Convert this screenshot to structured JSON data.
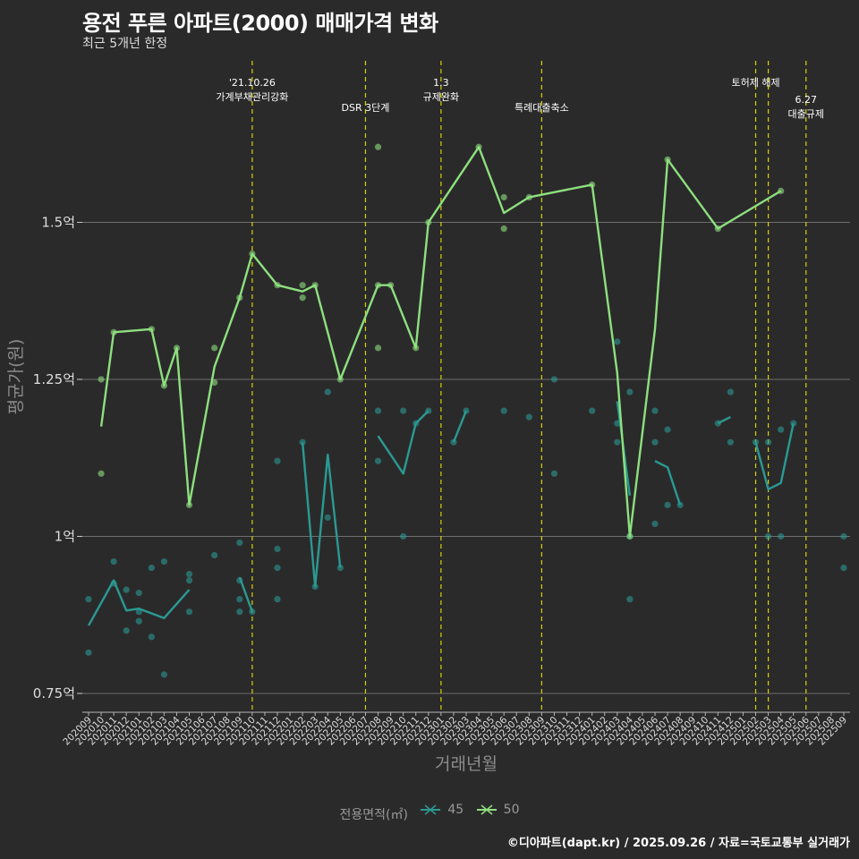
{
  "header": {
    "title": "용전 푸른 아파트(2000) 매매가격 변화",
    "subtitle": "최근 5개년 한정"
  },
  "caption": "©디아파트(dapt.kr) / 2025.09.26 / 자료=국토교통부 실거래가",
  "legend": {
    "title": "전용면적(㎡)",
    "entries": [
      {
        "label": "45",
        "color": "#2a9a92"
      },
      {
        "label": "50",
        "color": "#8de07e"
      }
    ]
  },
  "chart_data": {
    "type": "line",
    "xlabel": "거래년월",
    "ylabel": "평균가(원)",
    "ylim": [
      0.72,
      1.76
    ],
    "yticks": [
      {
        "value": 0.75,
        "label": "0.75억"
      },
      {
        "value": 1.0,
        "label": "1억"
      },
      {
        "value": 1.25,
        "label": "1.25억"
      },
      {
        "value": 1.5,
        "label": "1.5억"
      }
    ],
    "categories": [
      "202009",
      "202010",
      "202011",
      "202012",
      "202101",
      "202102",
      "202103",
      "202104",
      "202105",
      "202106",
      "202107",
      "202108",
      "202109",
      "202110",
      "202111",
      "202112",
      "202201",
      "202202",
      "202203",
      "202204",
      "202205",
      "202206",
      "202207",
      "202208",
      "202209",
      "202210",
      "202211",
      "202212",
      "202301",
      "202302",
      "202303",
      "202304",
      "202305",
      "202306",
      "202307",
      "202308",
      "202309",
      "202310",
      "202311",
      "202312",
      "202401",
      "202402",
      "202403",
      "202404",
      "202405",
      "202406",
      "202407",
      "202408",
      "202409",
      "202410",
      "202411",
      "202412",
      "202501",
      "202502",
      "202503",
      "202504",
      "202505",
      "202506",
      "202507",
      "202508",
      "202509"
    ],
    "xtick_labels": [
      "202009",
      "202010",
      "202011",
      "202012",
      "202101",
      "202102",
      "202103",
      "202104",
      "202105",
      "202106",
      "202107",
      "202108",
      "202109",
      "202110",
      "202111",
      "202112",
      "202201",
      "202202",
      "202203",
      "202204",
      "202205",
      "202206",
      "202207",
      "202208",
      "202209",
      "202210",
      "202211",
      "202212",
      "202301",
      "202302",
      "202303",
      "202304",
      "202305",
      "202306",
      "202307",
      "202308",
      "202309",
      "202310",
      "202311",
      "202312",
      "202401",
      "202402",
      "202403",
      "202404",
      "202405",
      "202406",
      "202407",
      "202408",
      "202409",
      "202410",
      "202411",
      "202412",
      "202501",
      "202502",
      "202503",
      "202504",
      "202505",
      "202506",
      "202507",
      "202508",
      "202509"
    ],
    "events": [
      {
        "index": 13,
        "lines": [
          "'21.10.26",
          "가계부채관리강화"
        ],
        "level": 0
      },
      {
        "index": 22,
        "lines": [
          "DSR 3단계"
        ],
        "level": 1
      },
      {
        "index": 28,
        "lines": [
          "1.3",
          "규제완화"
        ],
        "level": 0
      },
      {
        "index": 36,
        "lines": [
          "특례대출축소"
        ],
        "level": 1
      },
      {
        "index": 53,
        "lines": [
          "토허제 해제"
        ],
        "level": 0
      },
      {
        "index": 54,
        "lines": [],
        "level": 0
      },
      {
        "index": 57,
        "lines": [
          "6.27",
          "대출규제"
        ],
        "level": 2
      }
    ],
    "series": [
      {
        "name": "45",
        "color": "#2a9a92",
        "line": [
          [
            [
              0,
              0.858
            ],
            [
              2,
              0.93
            ],
            [
              3,
              0.882
            ],
            [
              4,
              0.885
            ],
            [
              6,
              0.87
            ],
            [
              8,
              0.915
            ]
          ],
          [
            [
              12,
              0.935
            ],
            [
              13,
              0.88
            ]
          ],
          [
            [
              17,
              1.15
            ],
            [
              18,
              0.92
            ],
            [
              19,
              1.13
            ],
            [
              20,
              0.95
            ]
          ],
          [
            [
              23,
              1.16
            ],
            [
              25,
              1.1
            ],
            [
              26,
              1.18
            ],
            [
              27,
              1.2
            ]
          ],
          [
            [
              29,
              1.15
            ],
            [
              30,
              1.2
            ]
          ],
          [
            [
              42,
              1.215
            ],
            [
              43,
              1.065
            ]
          ],
          [
            [
              45,
              1.12
            ],
            [
              46,
              1.11
            ],
            [
              47,
              1.05
            ]
          ],
          [
            [
              50,
              1.18
            ],
            [
              51,
              1.19
            ]
          ],
          [
            [
              53,
              1.15
            ],
            [
              54,
              1.075
            ],
            [
              55,
              1.085
            ],
            [
              56,
              1.18
            ]
          ]
        ],
        "points": [
          [
            0,
            0.9
          ],
          [
            0,
            0.815
          ],
          [
            2,
            0.96
          ],
          [
            2,
            0.925
          ],
          [
            3,
            0.915
          ],
          [
            3,
            0.85
          ],
          [
            4,
            0.91
          ],
          [
            4,
            0.865
          ],
          [
            4,
            0.88
          ],
          [
            5,
            0.95
          ],
          [
            5,
            0.84
          ],
          [
            6,
            0.96
          ],
          [
            6,
            0.78
          ],
          [
            8,
            0.94
          ],
          [
            8,
            0.93
          ],
          [
            8,
            0.88
          ],
          [
            10,
            0.97
          ],
          [
            12,
            0.99
          ],
          [
            12,
            0.93
          ],
          [
            12,
            0.9
          ],
          [
            12,
            0.88
          ],
          [
            13,
            0.88
          ],
          [
            15,
            1.12
          ],
          [
            15,
            0.98
          ],
          [
            15,
            0.95
          ],
          [
            15,
            0.9
          ],
          [
            17,
            1.15
          ],
          [
            18,
            0.92
          ],
          [
            19,
            1.23
          ],
          [
            19,
            1.03
          ],
          [
            20,
            0.95
          ],
          [
            23,
            1.2
          ],
          [
            23,
            1.12
          ],
          [
            25,
            1.2
          ],
          [
            25,
            1.0
          ],
          [
            26,
            1.18
          ],
          [
            27,
            1.2
          ],
          [
            29,
            1.15
          ],
          [
            30,
            1.2
          ],
          [
            33,
            1.2
          ],
          [
            35,
            1.19
          ],
          [
            37,
            1.25
          ],
          [
            37,
            1.1
          ],
          [
            40,
            1.2
          ],
          [
            42,
            1.31
          ],
          [
            42,
            1.18
          ],
          [
            42,
            1.15
          ],
          [
            43,
            1.23
          ],
          [
            43,
            1.0
          ],
          [
            43,
            0.9
          ],
          [
            45,
            1.2
          ],
          [
            45,
            1.15
          ],
          [
            45,
            1.02
          ],
          [
            46,
            1.17
          ],
          [
            46,
            1.05
          ],
          [
            47,
            1.05
          ],
          [
            50,
            1.18
          ],
          [
            51,
            1.23
          ],
          [
            51,
            1.15
          ],
          [
            53,
            1.15
          ],
          [
            54,
            1.15
          ],
          [
            54,
            1.0
          ],
          [
            55,
            1.17
          ],
          [
            55,
            1.0
          ],
          [
            56,
            1.18
          ],
          [
            60,
            1.0
          ],
          [
            60,
            0.95
          ]
        ]
      },
      {
        "name": "50",
        "color": "#8de07e",
        "line": [
          [
            [
              1,
              1.175
            ],
            [
              2,
              1.325
            ],
            [
              5,
              1.33
            ],
            [
              6,
              1.24
            ],
            [
              7,
              1.3
            ],
            [
              8,
              1.05
            ],
            [
              10,
              1.27
            ],
            [
              12,
              1.38
            ],
            [
              13,
              1.45
            ],
            [
              15,
              1.4
            ],
            [
              17,
              1.39
            ],
            [
              18,
              1.4
            ],
            [
              20,
              1.25
            ],
            [
              23,
              1.4
            ],
            [
              24,
              1.4
            ],
            [
              26,
              1.3
            ],
            [
              27,
              1.5
            ],
            [
              31,
              1.62
            ],
            [
              33,
              1.515
            ],
            [
              35,
              1.54
            ],
            [
              40,
              1.56
            ],
            [
              42,
              1.26
            ],
            [
              43,
              1.0
            ],
            [
              45,
              1.33
            ],
            [
              46,
              1.6
            ],
            [
              50,
              1.49
            ],
            [
              55,
              1.55
            ]
          ]
        ],
        "points": [
          [
            1,
            1.25
          ],
          [
            1,
            1.1
          ],
          [
            2,
            1.325
          ],
          [
            5,
            1.33
          ],
          [
            6,
            1.24
          ],
          [
            7,
            1.3
          ],
          [
            8,
            1.05
          ],
          [
            10,
            1.3
          ],
          [
            10,
            1.245
          ],
          [
            12,
            1.38
          ],
          [
            13,
            1.45
          ],
          [
            15,
            1.4
          ],
          [
            17,
            1.4
          ],
          [
            17,
            1.38
          ],
          [
            18,
            1.4
          ],
          [
            20,
            1.25
          ],
          [
            23,
            1.62
          ],
          [
            23,
            1.4
          ],
          [
            23,
            1.3
          ],
          [
            24,
            1.4
          ],
          [
            26,
            1.3
          ],
          [
            27,
            1.5
          ],
          [
            31,
            1.62
          ],
          [
            33,
            1.54
          ],
          [
            33,
            1.49
          ],
          [
            35,
            1.54
          ],
          [
            40,
            1.56
          ],
          [
            43,
            1.0
          ],
          [
            46,
            1.6
          ],
          [
            50,
            1.49
          ],
          [
            55,
            1.55
          ]
        ]
      }
    ]
  }
}
